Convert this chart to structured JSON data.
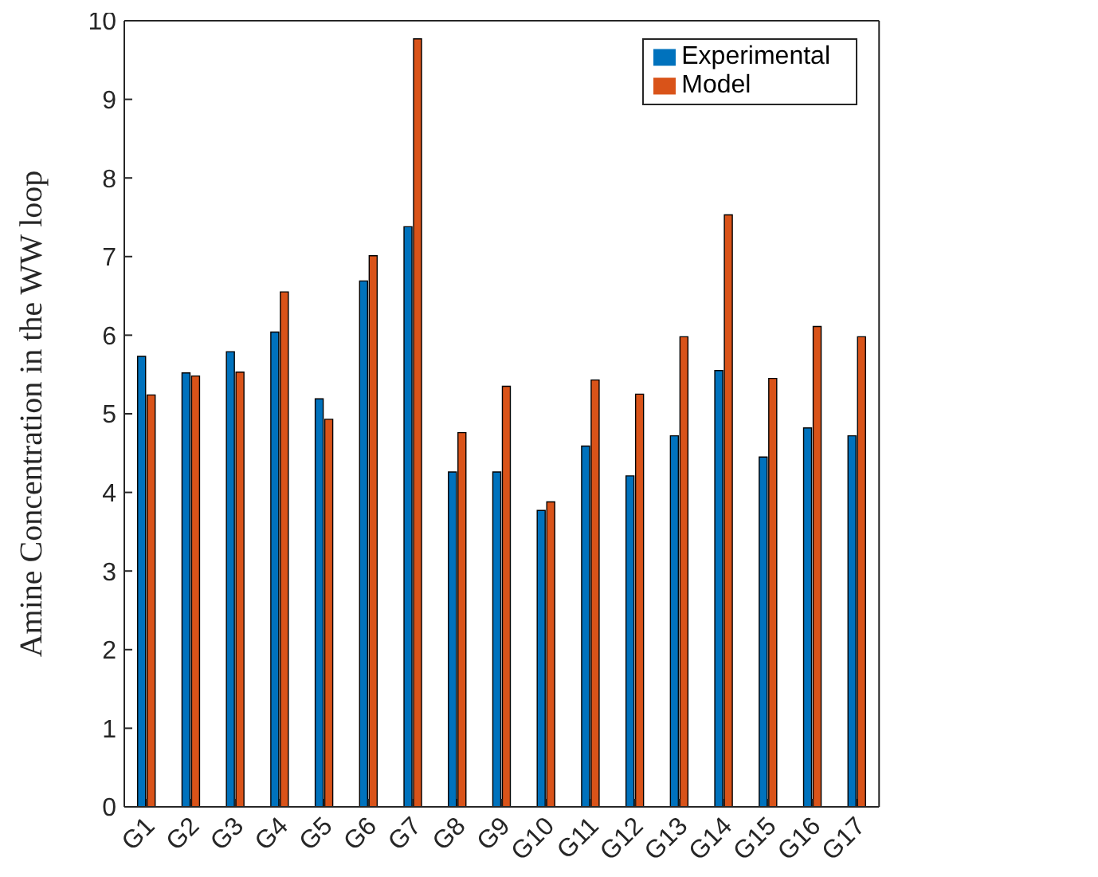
{
  "chart_data": {
    "type": "bar",
    "ylabel": "Amine Concentration in the WW loop",
    "categories": [
      "G1",
      "G2",
      "G3",
      "G4",
      "G5",
      "G6",
      "G7",
      "G8",
      "G9",
      "G10",
      "G11",
      "G12",
      "G13",
      "G14",
      "G15",
      "G16",
      "G17"
    ],
    "series": [
      {
        "name": "Experimental",
        "color": "#0072bd",
        "values": [
          5.73,
          5.52,
          5.79,
          6.04,
          5.19,
          6.69,
          7.38,
          4.26,
          4.26,
          3.77,
          4.59,
          4.21,
          4.72,
          5.55,
          4.45,
          4.82,
          4.72
        ]
      },
      {
        "name": "Model",
        "color": "#d95319",
        "values": [
          5.24,
          5.48,
          5.53,
          6.55,
          4.93,
          7.01,
          9.77,
          4.76,
          5.35,
          3.88,
          5.43,
          5.25,
          5.98,
          7.53,
          5.45,
          6.11,
          5.98
        ]
      }
    ],
    "ylim": [
      0,
      10
    ],
    "yticks": [
      0,
      1,
      2,
      3,
      4,
      5,
      6,
      7,
      8,
      9,
      10
    ],
    "grid": false,
    "legend": "top right"
  }
}
